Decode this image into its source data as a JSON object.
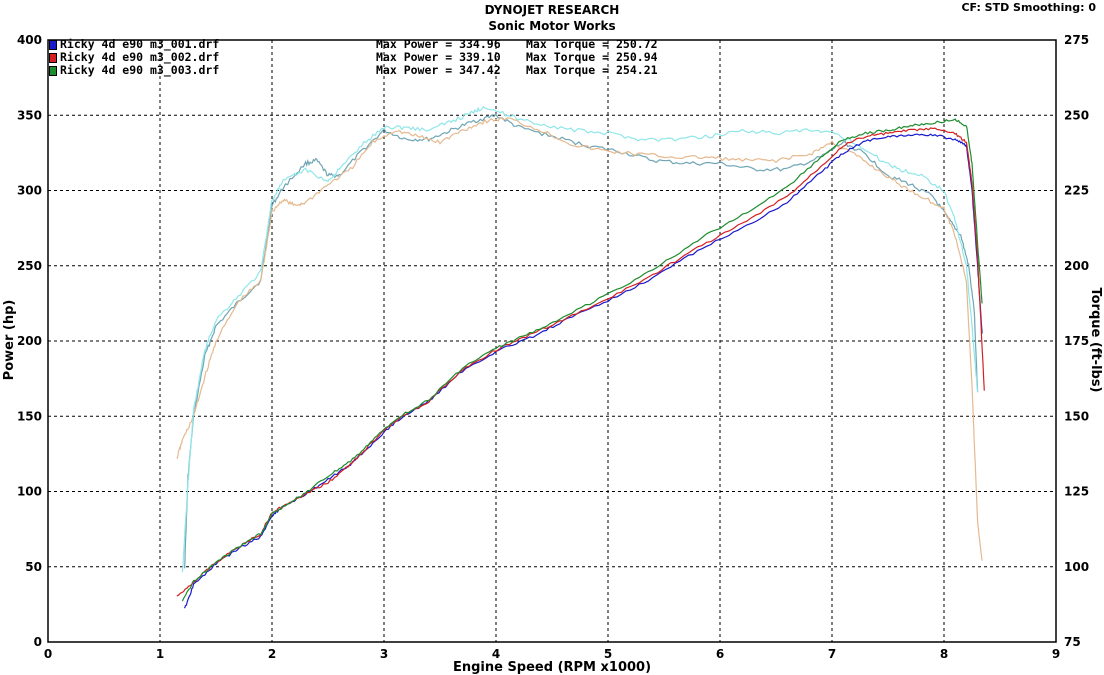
{
  "header": {
    "title": "DYNOJET RESEARCH",
    "subtitle": "Sonic Motor Works",
    "cf_info": "CF: STD  Smoothing: 0"
  },
  "legend": {
    "runs": [
      {
        "file": "Ricky 4d e90 m3_001.drf",
        "max_power": "Max Power = 334.96",
        "max_torque": "Max Torque = 250.72",
        "color": "#1a1acd"
      },
      {
        "file": "Ricky 4d e90 m3_002.drf",
        "max_power": "Max Power = 339.10",
        "max_torque": "Max Torque = 250.94",
        "color": "#d42020"
      },
      {
        "file": "Ricky 4d e90 m3_003.drf",
        "max_power": "Max Power = 347.42",
        "max_torque": "Max Torque = 254.21",
        "color": "#1e8c2e"
      }
    ]
  },
  "chart_data": {
    "type": "line",
    "xlabel": "Engine Speed (RPM x1000)",
    "ylabel_left": "Power (hp)",
    "ylabel_right": "Torque (ft-lbs)",
    "xlim": [
      0,
      9
    ],
    "ylim_left": [
      0,
      400
    ],
    "ylim_right": [
      75,
      275
    ],
    "x_ticks": [
      "0",
      "1",
      "2",
      "3",
      "4",
      "5",
      "6",
      "7",
      "8",
      "9"
    ],
    "y_ticks_left": [
      "0",
      "50",
      "100",
      "150",
      "200",
      "250",
      "300",
      "350",
      "400"
    ],
    "y_ticks_right": [
      "75",
      "100",
      "125",
      "150",
      "175",
      "200",
      "225",
      "250",
      "275"
    ],
    "grid": true,
    "power_series": [
      {
        "name": "Ricky 4d e90 m3_001.drf",
        "color": "#1a1acd",
        "x": [
          1.22,
          1.3,
          1.5,
          1.7,
          1.9,
          2.0,
          2.1,
          2.3,
          2.5,
          2.7,
          2.9,
          3.1,
          3.4,
          3.7,
          4.0,
          4.3,
          4.6,
          5.0,
          5.4,
          5.8,
          6.2,
          6.6,
          6.9,
          7.1,
          7.3,
          7.5,
          7.7,
          7.9,
          8.1,
          8.2,
          8.25,
          8.3,
          8.34
        ],
        "y": [
          22,
          38,
          52,
          62,
          70,
          84,
          90,
          98,
          108,
          118,
          132,
          146,
          160,
          180,
          193,
          202,
          213,
          227,
          242,
          260,
          275,
          292,
          312,
          325,
          333,
          336,
          337,
          337,
          334,
          330,
          300,
          250,
          205
        ]
      },
      {
        "name": "Ricky 4d e90 m3_002.drf",
        "color": "#d42020",
        "x": [
          1.15,
          1.3,
          1.5,
          1.7,
          1.9,
          2.0,
          2.1,
          2.3,
          2.5,
          2.7,
          2.9,
          3.1,
          3.4,
          3.7,
          4.0,
          4.3,
          4.6,
          5.0,
          5.4,
          5.8,
          6.2,
          6.6,
          6.9,
          7.1,
          7.3,
          7.5,
          7.7,
          7.9,
          8.1,
          8.2,
          8.25,
          8.3,
          8.36
        ],
        "y": [
          30,
          40,
          53,
          63,
          72,
          86,
          90,
          98,
          106,
          118,
          133,
          147,
          160,
          181,
          194,
          204,
          214,
          228,
          244,
          262,
          278,
          296,
          316,
          330,
          336,
          338,
          340,
          341,
          338,
          332,
          305,
          255,
          167
        ]
      },
      {
        "name": "Ricky 4d e90 m3_003.drf",
        "color": "#1e8c2e",
        "x": [
          1.2,
          1.3,
          1.5,
          1.7,
          1.9,
          2.0,
          2.1,
          2.3,
          2.5,
          2.7,
          2.9,
          3.1,
          3.4,
          3.7,
          4.0,
          4.3,
          4.6,
          5.0,
          5.4,
          5.8,
          6.2,
          6.6,
          6.9,
          7.1,
          7.3,
          7.5,
          7.7,
          7.9,
          8.1,
          8.2,
          8.25,
          8.3,
          8.34
        ],
        "y": [
          28,
          40,
          53,
          63,
          72,
          85,
          90,
          99,
          110,
          120,
          134,
          148,
          161,
          182,
          195,
          205,
          216,
          231,
          247,
          267,
          284,
          302,
          322,
          334,
          338,
          340,
          343,
          345,
          347,
          343,
          318,
          265,
          225
        ]
      }
    ],
    "torque_series": [
      {
        "name": "Ricky 4d e90 m3_001.drf",
        "color": "#6fa5b5",
        "x": [
          1.22,
          1.25,
          1.3,
          1.4,
          1.5,
          1.7,
          1.9,
          2.0,
          2.1,
          2.3,
          2.4,
          2.5,
          2.6,
          2.8,
          3.0,
          3.2,
          3.4,
          3.6,
          3.8,
          4.0,
          4.2,
          4.5,
          4.8,
          5.1,
          5.4,
          5.7,
          6.0,
          6.3,
          6.6,
          6.9,
          7.1,
          7.3,
          7.5,
          7.7,
          7.9,
          8.05,
          8.15,
          8.22,
          8.27,
          8.3
        ],
        "y": [
          100,
          130,
          150,
          170,
          180,
          188,
          195,
          220,
          226,
          234,
          235,
          230,
          230,
          238,
          245,
          242,
          242,
          245,
          248,
          250,
          246,
          243,
          240,
          238,
          235,
          234,
          234,
          232,
          232,
          236,
          241,
          237,
          230,
          227,
          223,
          215,
          210,
          200,
          185,
          158
        ]
      },
      {
        "name": "Ricky 4d e90 m3_002.drf",
        "color": "#e5b98f",
        "x": [
          1.15,
          1.2,
          1.3,
          1.4,
          1.5,
          1.7,
          1.9,
          2.0,
          2.1,
          2.2,
          2.3,
          2.5,
          2.7,
          2.9,
          3.1,
          3.3,
          3.5,
          3.7,
          3.9,
          4.1,
          4.4,
          4.7,
          5.0,
          5.3,
          5.6,
          5.9,
          6.2,
          6.5,
          6.8,
          7.0,
          7.2,
          7.4,
          7.6,
          7.8,
          8.0,
          8.1,
          8.2,
          8.25,
          8.3,
          8.34
        ],
        "y": [
          136,
          142,
          150,
          163,
          175,
          188,
          195,
          218,
          222,
          220,
          221,
          227,
          232,
          241,
          245,
          243,
          241,
          245,
          248,
          249,
          245,
          240,
          238,
          237,
          236,
          236,
          235,
          235,
          237,
          241,
          237,
          232,
          227,
          223,
          219,
          210,
          195,
          160,
          115,
          102
        ]
      },
      {
        "name": "Ricky 4d e90 m3_003.drf",
        "color": "#8fe6e8",
        "x": [
          1.2,
          1.25,
          1.3,
          1.4,
          1.5,
          1.7,
          1.9,
          2.0,
          2.1,
          2.3,
          2.5,
          2.6,
          2.8,
          3.0,
          3.2,
          3.4,
          3.6,
          3.8,
          3.9,
          4.1,
          4.4,
          4.7,
          5.0,
          5.3,
          5.6,
          5.9,
          6.2,
          6.5,
          6.8,
          7.0,
          7.2,
          7.4,
          7.6,
          7.8,
          8.0,
          8.1,
          8.2,
          8.25,
          8.3
        ],
        "y": [
          98,
          128,
          152,
          172,
          182,
          190,
          198,
          222,
          228,
          232,
          228,
          232,
          240,
          246,
          246,
          245,
          248,
          251,
          253,
          250,
          247,
          245,
          244,
          242,
          242,
          243,
          245,
          244,
          245,
          244,
          241,
          236,
          232,
          230,
          225,
          215,
          200,
          180,
          158
        ]
      }
    ]
  }
}
